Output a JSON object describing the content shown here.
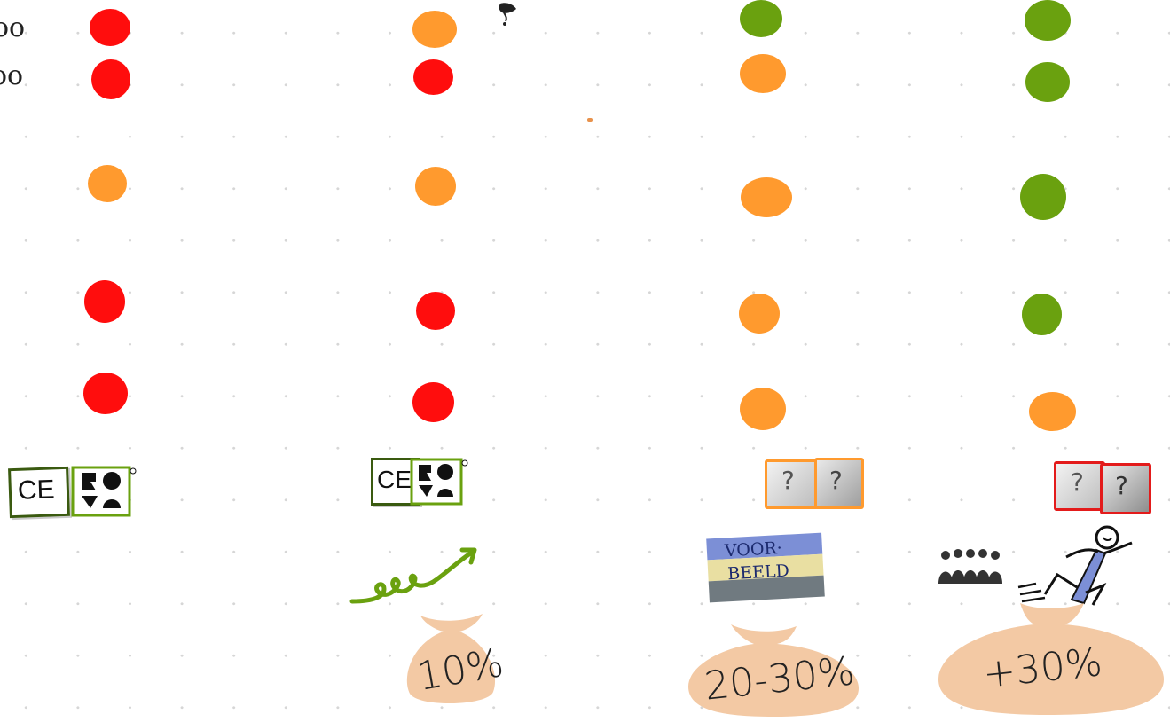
{
  "row_fragments": [
    "oo",
    "oo"
  ],
  "matrix": {
    "columns": [
      {
        "id": "col1",
        "levels": [
          "red",
          "red",
          "orange",
          "red",
          "red"
        ],
        "certification": "CE + KOMO",
        "cost_increase": ""
      },
      {
        "id": "col2",
        "levels": [
          "orange",
          "red",
          "orange",
          "red",
          "red"
        ],
        "certification": "CE + KOMO",
        "cost_increase": "10%"
      },
      {
        "id": "col3",
        "levels": [
          "green",
          "orange",
          "orange",
          "orange",
          "orange"
        ],
        "certification": "unknown (orange)",
        "cost_increase": "20-30%"
      },
      {
        "id": "col4",
        "levels": [
          "green",
          "green",
          "green",
          "green",
          "orange"
        ],
        "certification": "unknown (red)",
        "cost_increase": "+30%"
      }
    ]
  },
  "stickers": {
    "ce_label": "CE",
    "voorbeeld_line1": "VOOR·",
    "voorbeeld_line2": "BEELD",
    "question_mark": "?"
  },
  "colors": {
    "red": "#ff0d0d",
    "orange": "#ff9a2e",
    "green": "#6aa10f",
    "bag": "#f3c9a4",
    "dot_grid": "#d6d6d6"
  }
}
